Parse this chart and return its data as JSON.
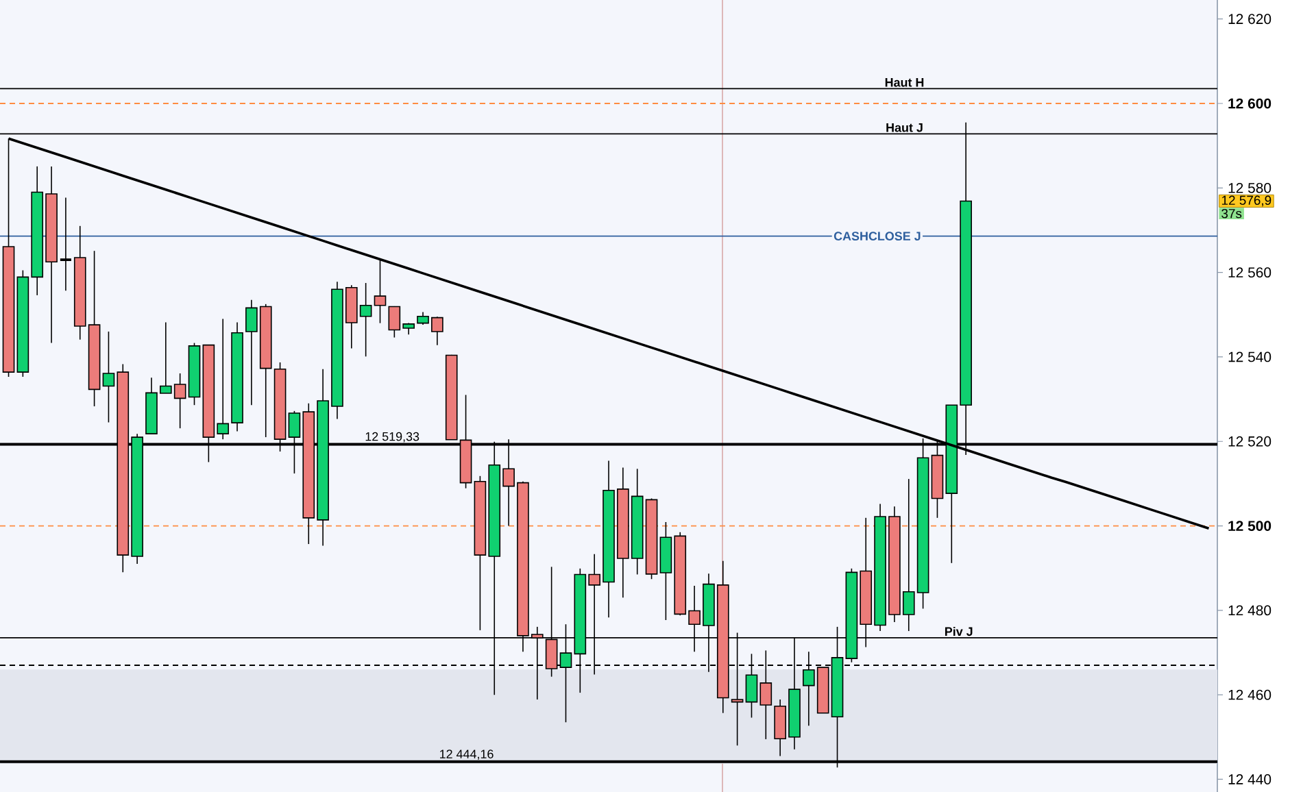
{
  "chart_data": {
    "type": "candlestick",
    "categories": [
      null,
      null,
      null,
      null,
      null,
      null,
      null,
      null,
      null,
      null,
      null,
      null,
      null,
      null,
      null,
      null,
      null,
      null,
      null,
      null,
      null,
      null,
      null,
      null,
      null,
      null,
      null,
      null,
      null,
      null,
      null,
      null,
      null,
      null,
      null,
      null,
      null,
      null,
      null,
      null,
      null,
      null,
      null,
      null,
      null,
      null,
      null,
      null,
      null,
      null,
      null,
      null,
      null,
      null,
      null,
      null,
      null,
      null,
      null,
      null,
      null,
      null,
      null,
      null,
      null,
      null,
      null,
      null,
      null,
      null,
      null,
      null,
      null,
      null,
      null,
      null,
      null,
      null,
      null,
      null,
      null,
      null,
      null,
      null,
      null
    ],
    "ohlc": [
      [
        12566.1,
        12591.7,
        12535.3,
        12536.4
      ],
      [
        12536.4,
        12560.5,
        12535.3,
        12558.9
      ],
      [
        12558.9,
        12585.1,
        12554.6,
        12579.0
      ],
      [
        12578.6,
        12585.1,
        12543.3,
        12562.5
      ],
      [
        12563.0,
        12577.7,
        12555.7,
        12563.0
      ],
      [
        12563.5,
        12571.0,
        12544.1,
        12547.3
      ],
      [
        12547.6,
        12565.1,
        12528.3,
        12532.3
      ],
      [
        12533.1,
        12546.0,
        12524.5,
        12536.1
      ],
      [
        12536.4,
        12538.3,
        12489.0,
        12493.1
      ],
      [
        12492.8,
        12521.8,
        12491.0,
        12521.0
      ],
      [
        12521.8,
        12535.1,
        12521.8,
        12531.5
      ],
      [
        12531.4,
        12548.2,
        12531.4,
        12533.1
      ],
      [
        12533.5,
        12536.1,
        12523.1,
        12530.2
      ],
      [
        12530.5,
        12543.3,
        12528.6,
        12542.6
      ],
      [
        12542.8,
        12542.8,
        12515.1,
        12521.0
      ],
      [
        12521.8,
        12549.0,
        12520.5,
        12524.2
      ],
      [
        12524.4,
        12548.2,
        12522.4,
        12545.7
      ],
      [
        12546.0,
        12553.5,
        12528.6,
        12551.6
      ],
      [
        12551.9,
        12552.5,
        12521.0,
        12537.3
      ],
      [
        12537.1,
        12538.7,
        12517.6,
        12520.5
      ],
      [
        12521.0,
        12527.2,
        12512.4,
        12526.7
      ],
      [
        12527.0,
        12529.0,
        12495.7,
        12501.9
      ],
      [
        12501.4,
        12537.1,
        12495.3,
        12529.6
      ],
      [
        12528.3,
        12557.8,
        12525.3,
        12556.0
      ],
      [
        12556.4,
        12557.0,
        12542.0,
        12548.1
      ],
      [
        12549.6,
        12557.5,
        12540.1,
        12552.2
      ],
      [
        12554.4,
        12563.2,
        12548.0,
        12552.2
      ],
      [
        12551.9,
        12552.0,
        12544.6,
        12546.4
      ],
      [
        12546.8,
        12548.0,
        12545.3,
        12547.8
      ],
      [
        12548.0,
        12550.6,
        12547.6,
        12549.6
      ],
      [
        12549.3,
        12549.5,
        12542.8,
        12546.0
      ],
      [
        12540.4,
        12540.5,
        12520.4,
        12520.4
      ],
      [
        12520.3,
        12531.0,
        12508.9,
        12510.2
      ],
      [
        12510.5,
        12511.8,
        12475.3,
        12493.1
      ],
      [
        12492.8,
        12519.9,
        12460.0,
        12514.4
      ],
      [
        12513.5,
        12520.5,
        12500.0,
        12509.4
      ],
      [
        12510.2,
        12510.5,
        12470.2,
        12474.0
      ],
      [
        12474.3,
        12476.1,
        12458.9,
        12473.5
      ],
      [
        12473.1,
        12490.3,
        12464.3,
        12466.2
      ],
      [
        12466.5,
        12476.7,
        12453.5,
        12469.9
      ],
      [
        12469.7,
        12489.9,
        12460.5,
        12488.5
      ],
      [
        12488.5,
        12493.3,
        12464.8,
        12486.0
      ],
      [
        12486.7,
        12515.4,
        12478.3,
        12508.4
      ],
      [
        12508.7,
        12513.8,
        12483.0,
        12492.3
      ],
      [
        12492.3,
        12513.5,
        12488.5,
        12507.0
      ],
      [
        12506.2,
        12506.5,
        12487.4,
        12488.6
      ],
      [
        12488.9,
        12500.9,
        12477.7,
        12497.3
      ],
      [
        12497.6,
        12498.5,
        12478.8,
        12479.1
      ],
      [
        12479.9,
        12485.8,
        12470.2,
        12476.7
      ],
      [
        12476.4,
        12488.7,
        12465.4,
        12486.2
      ],
      [
        12486.0,
        12491.7,
        12455.7,
        12459.3
      ],
      [
        12458.9,
        12474.7,
        12448.0,
        12458.3
      ],
      [
        12458.3,
        12469.7,
        12454.6,
        12464.7
      ],
      [
        12462.8,
        12470.5,
        12449.5,
        12457.6
      ],
      [
        12457.3,
        12458.9,
        12445.5,
        12449.6
      ],
      [
        12450.0,
        12473.5,
        12447.1,
        12461.3
      ],
      [
        12462.2,
        12470.2,
        12452.7,
        12465.9
      ],
      [
        12466.5,
        12466.5,
        12455.7,
        12455.7
      ],
      [
        12454.8,
        12476.1,
        12442.8,
        12468.8
      ],
      [
        12468.6,
        12489.9,
        12467.7,
        12489.0
      ],
      [
        12489.3,
        12501.9,
        12471.3,
        12476.7
      ],
      [
        12476.5,
        12505.2,
        12475.1,
        12502.2
      ],
      [
        12502.2,
        12504.6,
        12477.2,
        12479.0
      ],
      [
        12479.0,
        12511.1,
        12475.1,
        12484.4
      ],
      [
        12484.2,
        12520.7,
        12480.4,
        12516.1
      ],
      [
        12516.7,
        12520.2,
        12501.9,
        12506.5
      ],
      [
        12507.7,
        12528.6,
        12491.2,
        12528.6
      ],
      [
        12528.6,
        12595.5,
        12516.8,
        12576.9
      ],
      null,
      null,
      null,
      null,
      null,
      null,
      null,
      null,
      null,
      null,
      null,
      null,
      null,
      null,
      null,
      null,
      null
    ],
    "colors": [
      "#ec7c7a",
      "#10d070",
      "#10d070",
      "#ec7c7a",
      "#000000",
      "#ec7c7a",
      "#ec7c7a",
      "#10d070",
      "#ec7c7a",
      "#10d070",
      "#10d070",
      "#10d070",
      "#ec7c7a",
      "#10d070",
      "#ec7c7a",
      "#10d070",
      "#10d070",
      "#10d070",
      "#ec7c7a",
      "#ec7c7a",
      "#10d070",
      "#ec7c7a",
      "#10d070",
      "#10d070",
      "#ec7c7a",
      "#10d070",
      "#ec7c7a",
      "#ec7c7a",
      "#10d070",
      "#10d070",
      "#ec7c7a",
      "#ec7c7a",
      "#ec7c7a",
      "#ec7c7a",
      "#10d070",
      "#ec7c7a",
      "#ec7c7a",
      "#ec7c7a",
      "#ec7c7a",
      "#10d070",
      "#10d070",
      "#ec7c7a",
      "#10d070",
      "#ec7c7a",
      "#10d070",
      "#ec7c7a",
      "#10d070",
      "#ec7c7a",
      "#ec7c7a",
      "#10d070",
      "#ec7c7a",
      "#ec7c7a",
      "#10d070",
      "#ec7c7a",
      "#ec7c7a",
      "#10d070",
      "#10d070",
      "#ec7c7a",
      "#10d070",
      "#10d070",
      "#ec7c7a",
      "#10d070",
      "#ec7c7a",
      "#10d070",
      "#10d070",
      "#ec7c7a",
      "#10d070",
      "#10d070",
      null,
      null,
      null,
      null,
      null,
      null,
      null,
      null,
      null,
      null,
      null,
      null,
      null,
      null,
      null,
      null,
      null
    ],
    "series": [
      {
        "type": "line",
        "color": "#000000",
        "values": [
          12591.7,
          12590.6,
          12589.5,
          12588.4,
          12587.3,
          12586.2,
          12585.1,
          12584.0,
          12582.9,
          12581.8,
          12580.7,
          12579.6,
          12578.5,
          12577.4,
          12576.3,
          12575.2,
          12574.1,
          12573.0,
          12571.9,
          12570.8,
          12569.7,
          12568.6,
          12567.5,
          12566.4,
          12565.3,
          12564.2,
          12563.1,
          12562.0,
          12560.9,
          12559.8,
          12558.7,
          12557.6,
          12556.5,
          12555.4,
          12554.3,
          12553.2,
          12552.1,
          12551.0,
          12549.9,
          12548.8,
          12547.7,
          12546.6,
          12545.5,
          12544.4,
          12543.3,
          12542.2,
          12541.1,
          12540.0,
          12538.9,
          12537.8,
          12536.7,
          12535.6,
          12534.5,
          12533.4,
          12532.3,
          12531.2,
          12530.1,
          12529.0,
          12527.9,
          12526.8,
          12525.7,
          12524.6,
          12523.5,
          12522.4,
          12521.3,
          12520.2,
          12519.1,
          12518.0,
          12516.9,
          12515.8,
          12514.7,
          12513.6,
          12512.5,
          12511.4,
          12510.4,
          12509.3,
          12508.2,
          12507.1,
          12506.0,
          12504.9,
          12503.8,
          12502.7,
          12501.6,
          12500.5,
          12499.4
        ]
      }
    ],
    "ylim": [
      12437,
      12624.5
    ],
    "yticks": [
      {
        "value": 12440,
        "label": "12 440"
      },
      {
        "value": 12460,
        "label": "12 460"
      },
      {
        "value": 12480,
        "label": "12 480"
      },
      {
        "value": 12500,
        "label": "**12 500**"
      },
      {
        "value": 12520,
        "label": "12 520"
      },
      {
        "value": 12540,
        "label": "12 540"
      },
      {
        "value": 12560,
        "label": "12 560"
      },
      {
        "value": 12580,
        "label": "12 580"
      },
      {
        "value": 12600,
        "label": "**12 600**"
      },
      {
        "value": 12620,
        "label": "12 620"
      }
    ],
    "tick_labels": "y",
    "ref_lines": [
      {
        "axis": "y",
        "value": 12603.5,
        "label": "Haut H",
        "color": "#000000"
      },
      {
        "axis": "y",
        "value": 12600,
        "color": "#ff8c40",
        "line_style": "dashed"
      },
      {
        "axis": "y",
        "value": 12592.8,
        "label": "Haut J",
        "color": "#000000"
      },
      {
        "axis": "y",
        "value": 12568.6,
        "label": "CASHCLOSE J",
        "color": "#2e5f9e"
      },
      {
        "axis": "y",
        "value": 12519.33,
        "label": "12 519,33",
        "color": "#000000"
      },
      {
        "axis": "y",
        "value": 12500,
        "color": "#ff8c40",
        "line_style": "dashed"
      },
      {
        "axis": "y",
        "value": 12473.5,
        "label": "Piv J",
        "color": "#000000"
      },
      {
        "axis": "y",
        "value": 12467,
        "color": "#000000",
        "line_style": "dashed"
      },
      {
        "axis": "y",
        "value": 12444.16,
        "label": "12 444,16",
        "color": "#000000"
      }
    ],
    "bands": [
      {
        "axis": "y",
        "from": 12443.7,
        "to": 12466,
        "color": "#e3e6ee"
      }
    ],
    "annotations": [
      "12 576,9",
      "37s"
    ]
  }
}
